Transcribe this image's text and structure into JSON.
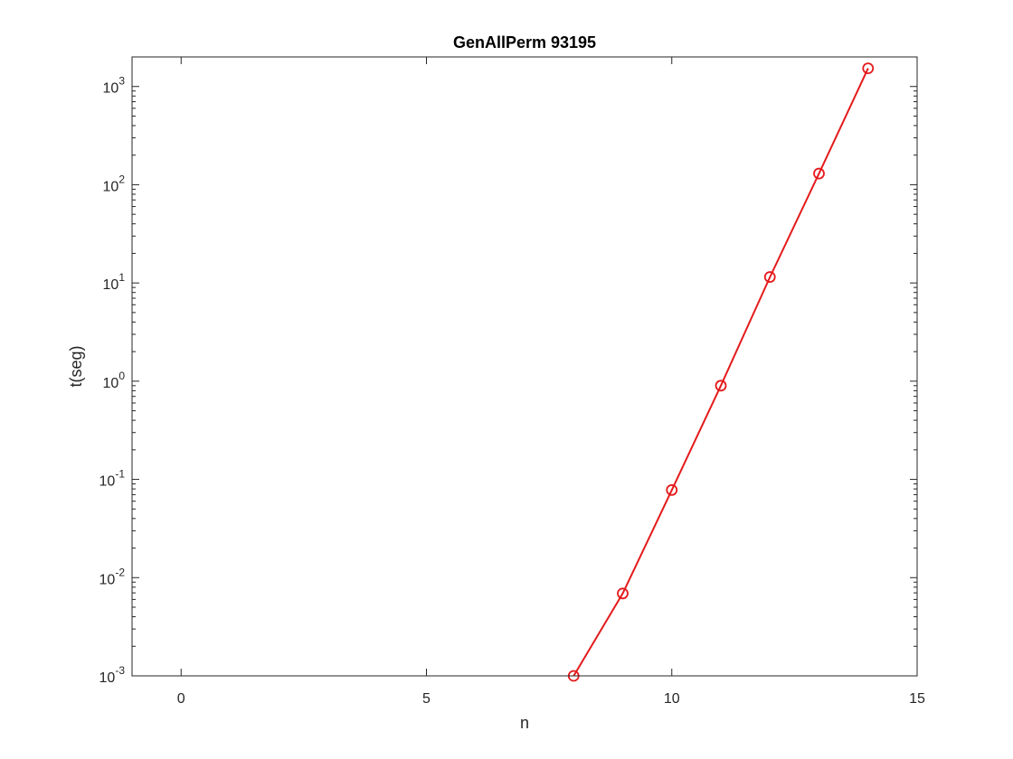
{
  "chart_data": {
    "type": "line",
    "title": "GenAllPerm 93195",
    "xlabel": "n",
    "ylabel": "t(seg)",
    "xlim": [
      -1,
      15
    ],
    "ylim": [
      0.001,
      2000
    ],
    "yscale": "log",
    "grid": false,
    "x_ticks": [
      0,
      5,
      10,
      15
    ],
    "x_tick_labels": [
      "0",
      "5",
      "10",
      "15"
    ],
    "y_ticks": [
      0.001,
      0.01,
      0.1,
      1,
      10,
      100,
      1000
    ],
    "y_tick_labels": [
      {
        "base": "10",
        "exp": "-3"
      },
      {
        "base": "10",
        "exp": "-2"
      },
      {
        "base": "10",
        "exp": "-1"
      },
      {
        "base": "10",
        "exp": "0"
      },
      {
        "base": "10",
        "exp": "1"
      },
      {
        "base": "10",
        "exp": "2"
      },
      {
        "base": "10",
        "exp": "3"
      }
    ],
    "series": [
      {
        "color": "#e41a1c",
        "marker": "circle",
        "x": [
          8,
          9,
          10,
          11,
          12,
          13,
          14
        ],
        "y": [
          0.00096,
          0.0069,
          0.078,
          0.9,
          11.5,
          130,
          1530
        ]
      }
    ]
  }
}
